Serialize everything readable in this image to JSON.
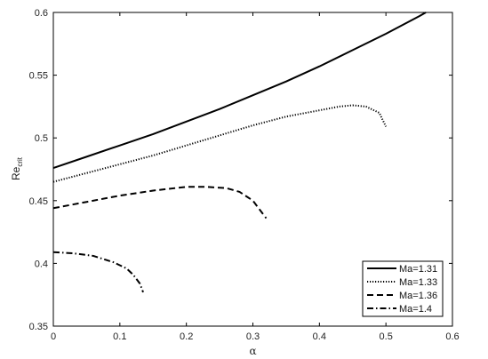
{
  "chart_data": {
    "type": "line",
    "title": "",
    "xlabel": "α",
    "ylabel_main": "Re",
    "ylabel_sub": "crit",
    "xlim": [
      0,
      0.6
    ],
    "ylim": [
      0.35,
      0.6
    ],
    "xticks": [
      0,
      0.1,
      0.2,
      0.3,
      0.4,
      0.5,
      0.6
    ],
    "xtick_labels": [
      "0",
      "0.1",
      "0.2",
      "0.3",
      "0.4",
      "0.5",
      "0.6"
    ],
    "yticks": [
      0.35,
      0.4,
      0.45,
      0.5,
      0.55,
      0.6
    ],
    "ytick_labels": [
      "0.35",
      "0.4",
      "0.45",
      "0.5",
      "0.55",
      "0.6"
    ],
    "grid": false,
    "legend_position": "bottom-right",
    "series": [
      {
        "name": "Ma=1.31",
        "style": "solid",
        "x": [
          0,
          0.05,
          0.1,
          0.15,
          0.2,
          0.25,
          0.3,
          0.35,
          0.4,
          0.45,
          0.5,
          0.55,
          0.56
        ],
        "y": [
          0.476,
          0.485,
          0.494,
          0.503,
          0.513,
          0.523,
          0.534,
          0.545,
          0.557,
          0.57,
          0.583,
          0.597,
          0.6
        ]
      },
      {
        "name": "Ma=1.33",
        "style": "dotted",
        "x": [
          0,
          0.05,
          0.1,
          0.15,
          0.2,
          0.25,
          0.3,
          0.35,
          0.4,
          0.43,
          0.45,
          0.47,
          0.49,
          0.5
        ],
        "y": [
          0.465,
          0.472,
          0.479,
          0.486,
          0.494,
          0.502,
          0.51,
          0.517,
          0.522,
          0.525,
          0.526,
          0.525,
          0.52,
          0.509
        ]
      },
      {
        "name": "Ma=1.36",
        "style": "dashed",
        "x": [
          0,
          0.05,
          0.1,
          0.15,
          0.2,
          0.23,
          0.26,
          0.28,
          0.3,
          0.31,
          0.32
        ],
        "y": [
          0.444,
          0.449,
          0.454,
          0.458,
          0.461,
          0.461,
          0.46,
          0.457,
          0.45,
          0.443,
          0.436
        ]
      },
      {
        "name": "Ma=1.4",
        "style": "dashdot",
        "x": [
          0,
          0.03,
          0.06,
          0.09,
          0.11,
          0.12,
          0.13,
          0.135
        ],
        "y": [
          0.409,
          0.408,
          0.406,
          0.401,
          0.396,
          0.391,
          0.384,
          0.377
        ]
      }
    ]
  }
}
